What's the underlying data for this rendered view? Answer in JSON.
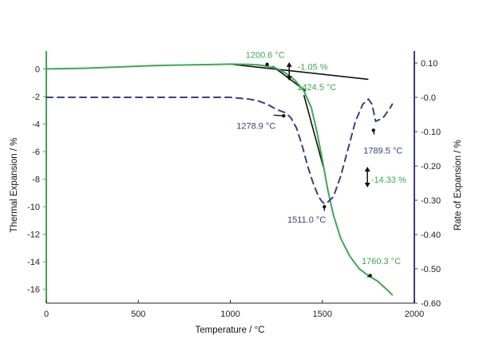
{
  "chart_data": {
    "type": "line",
    "xlabel": "Temperature / °C",
    "ylabel_left": "Thermal Expansion / %",
    "ylabel_right": "Rate of Expansion / %",
    "xlim": [
      0,
      2000
    ],
    "ylim_left": [
      -17,
      1.3
    ],
    "ylim_right": [
      -0.6,
      0.135
    ],
    "x_ticks": [
      0,
      500,
      1000,
      1500,
      2000
    ],
    "x_tick_labels": [
      "0",
      "500",
      "1000",
      "1500",
      "2000"
    ],
    "y_left_ticks": [
      0,
      -2,
      -4,
      -6,
      -8,
      -10,
      -12,
      -14,
      -16
    ],
    "y_left_tick_labels": [
      "0",
      "-2",
      "-4",
      "-6",
      "-8",
      "-10",
      "-12",
      "-14",
      "-16"
    ],
    "y_right_ticks": [
      0.1,
      0.0,
      -0.1,
      -0.2,
      -0.3,
      -0.4,
      -0.5,
      -0.6
    ],
    "y_right_tick_labels": [
      "0.10",
      "-0.0",
      "-0.10",
      "-0.20",
      "-0.30",
      "-0.40",
      "-0.50",
      "-0.60"
    ],
    "grid": false,
    "colors": {
      "expansion": "#3aaa4f",
      "rate": "#3b3b8f",
      "tangent": "#111111",
      "left_axis": "#3aaa4f",
      "right_axis": "#3b3b8f"
    },
    "series": [
      {
        "axis": "left",
        "style": "solid",
        "x": [
          0,
          200,
          400,
          600,
          800,
          1000,
          1100,
          1150,
          1200,
          1250,
          1300,
          1350,
          1400,
          1440,
          1470,
          1500,
          1530,
          1560,
          1600,
          1650,
          1700,
          1750,
          1800,
          1850,
          1880
        ],
        "y": [
          0,
          0.05,
          0.15,
          0.25,
          0.3,
          0.35,
          0.33,
          0.3,
          0.2,
          0.05,
          -0.3,
          -0.8,
          -1.6,
          -2.8,
          -4.5,
          -6.6,
          -8.8,
          -10.6,
          -12.3,
          -13.6,
          -14.5,
          -15.0,
          -15.4,
          -16.0,
          -16.4
        ]
      },
      {
        "axis": "right",
        "style": "dashed",
        "x": [
          0,
          200,
          400,
          600,
          800,
          1000,
          1100,
          1150,
          1200,
          1250,
          1300,
          1330,
          1360,
          1390,
          1420,
          1450,
          1480,
          1500,
          1511,
          1530,
          1560,
          1600,
          1640,
          1680,
          1720,
          1750,
          1770,
          1789.5,
          1810,
          1830,
          1850,
          1870,
          1880
        ],
        "y": [
          0.0,
          0.0,
          0.0,
          0.0,
          0.0,
          0.0,
          -0.005,
          -0.01,
          -0.02,
          -0.035,
          -0.045,
          -0.06,
          -0.09,
          -0.14,
          -0.2,
          -0.25,
          -0.29,
          -0.305,
          -0.31,
          -0.305,
          -0.29,
          -0.23,
          -0.15,
          -0.07,
          -0.02,
          -0.005,
          -0.02,
          -0.07,
          -0.065,
          -0.06,
          -0.045,
          -0.03,
          -0.02
        ]
      }
    ],
    "tangent_lines": [
      {
        "x": [
          1000,
          1750
        ],
        "y": [
          0.35,
          -0.75
        ]
      },
      {
        "x": [
          1230,
          1410
        ],
        "y": [
          0.2,
          -1.6
        ]
      },
      {
        "x": [
          1400,
          1505
        ],
        "y": [
          -1.9,
          -7.1
        ]
      }
    ],
    "annotations": [
      {
        "text": "1200.6 °C",
        "x": 1190,
        "y": 0.8,
        "color": "#3aaa4f",
        "axis": "left",
        "anchor": "middle"
      },
      {
        "text": "-1.05 %",
        "x": 1365,
        "y": -0.05,
        "color": "#3aaa4f",
        "axis": "left",
        "anchor": "start"
      },
      {
        "text": "1424.5 °C",
        "x": 1470,
        "y": -1.55,
        "color": "#3aaa4f",
        "axis": "left",
        "anchor": "middle"
      },
      {
        "text": "1278.9 °C",
        "x": 1140,
        "y": -4.35,
        "color": "#3b3b8f",
        "axis": "left",
        "anchor": "middle"
      },
      {
        "text": "1789.5 °C",
        "x": 1830,
        "y": -6.15,
        "color": "#3b3b8f",
        "axis": "left",
        "anchor": "middle"
      },
      {
        "text": "-14.33 %",
        "x": 1765,
        "y": -8.25,
        "color": "#3aaa4f",
        "axis": "left",
        "anchor": "start"
      },
      {
        "text": "1511.0 °C",
        "x": 1415,
        "y": -11.15,
        "color": "#3b3b8f",
        "axis": "left",
        "anchor": "middle"
      },
      {
        "text": "1760.3 °C",
        "x": 1820,
        "y": -14.15,
        "color": "#3aaa4f",
        "axis": "left",
        "anchor": "middle"
      }
    ],
    "markers": [
      {
        "type": "double-arrow",
        "x": 1320,
        "y1": 0.5,
        "y2": -0.85,
        "axis": "left",
        "color": "#111111"
      },
      {
        "type": "double-arrow",
        "x": 1745,
        "y1": -7.1,
        "y2": -8.6,
        "axis": "left",
        "color": "#111111"
      },
      {
        "type": "pointer",
        "from": [
          1290,
          -3.4
        ],
        "to": [
          1235,
          -3.35
        ],
        "axis": "left"
      },
      {
        "type": "pointer",
        "from": [
          1511,
          -10.0
        ],
        "to": [
          1511,
          -10.3
        ],
        "axis": "left"
      },
      {
        "type": "pointer",
        "from": [
          1778,
          -4.45
        ],
        "to": [
          1782,
          -4.75
        ],
        "axis": "left"
      },
      {
        "type": "pointer",
        "from": [
          1760,
          -15.0
        ],
        "to": [
          1745,
          -15.1
        ],
        "axis": "left"
      },
      {
        "type": "pointer",
        "from": [
          1200,
          0.33
        ],
        "to": [
          1200,
          0.2
        ],
        "axis": "left"
      }
    ]
  }
}
